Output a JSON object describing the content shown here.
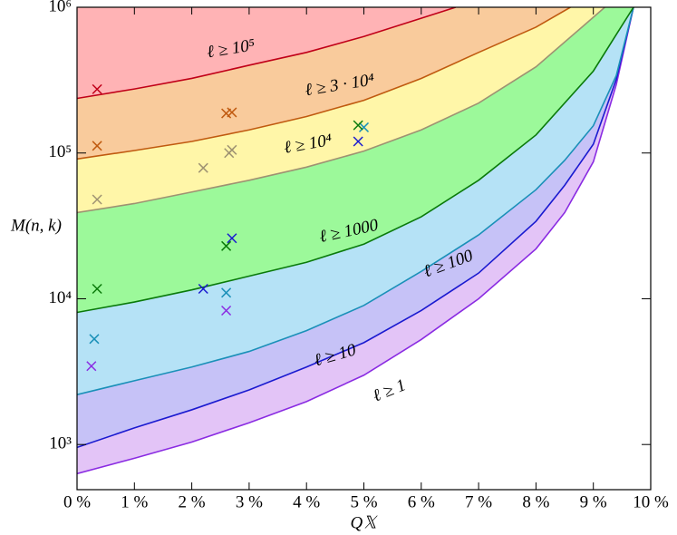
{
  "chart_data": {
    "type": "band-line",
    "x_label": "Q𝕏",
    "y_label": "M(n, k)",
    "log_y": true,
    "xlim": [
      0,
      10
    ],
    "ylim": [
      490,
      1000000
    ],
    "xticks": [
      {
        "value": 0,
        "label": "0 %"
      },
      {
        "value": 1,
        "label": "1 %"
      },
      {
        "value": 2,
        "label": "2 %"
      },
      {
        "value": 3,
        "label": "3 %"
      },
      {
        "value": 4,
        "label": "4 %"
      },
      {
        "value": 5,
        "label": "5 %"
      },
      {
        "value": 6,
        "label": "6 %"
      },
      {
        "value": 7,
        "label": "7 %"
      },
      {
        "value": 8,
        "label": "8 %"
      },
      {
        "value": 9,
        "label": "9 %"
      },
      {
        "value": 10,
        "label": "10 %"
      }
    ],
    "yticks": [
      {
        "value": 1000,
        "label": "10³"
      },
      {
        "value": 10000,
        "label": "10⁴"
      },
      {
        "value": 100000,
        "label": "10⁵"
      },
      {
        "value": 1000000,
        "label": "10⁶"
      }
    ],
    "series": [
      {
        "name": "ℓ ≥ 1",
        "color": "#8a2be2",
        "fill": "#e3c4f7",
        "x": [
          0,
          1,
          2,
          3,
          4,
          5,
          6,
          7,
          8,
          8.5,
          9,
          9.4,
          9.7
        ],
        "values": [
          631,
          805,
          1040,
          1410,
          1970,
          2990,
          5250,
          10000,
          22000,
          39000,
          87000,
          295000,
          1000000
        ],
        "marker_x": [
          0.25,
          2.6
        ],
        "marker_y": [
          3450,
          8300
        ]
      },
      {
        "name": "ℓ ≥ 10",
        "color": "#1a1ad0",
        "fill": "#c6c2f7",
        "x": [
          0,
          1,
          2,
          3,
          4,
          5,
          6,
          7,
          8,
          8.5,
          9,
          9.4,
          9.7
        ],
        "values": [
          955,
          1300,
          1730,
          2370,
          3400,
          5000,
          8300,
          15000,
          34000,
          60000,
          115000,
          320000,
          1000000
        ],
        "marker_x": [
          2.2,
          4.9,
          2.7
        ],
        "marker_y": [
          11700,
          120000,
          26000
        ]
      },
      {
        "name": "ℓ ≥ 100",
        "color": "#1a90b8",
        "fill": "#b5e2f6",
        "x": [
          0,
          1,
          2,
          3,
          4,
          5,
          6,
          7,
          8,
          8.5,
          9,
          9.4,
          9.7
        ],
        "values": [
          2200,
          2740,
          3400,
          4350,
          6040,
          9000,
          15400,
          27400,
          56000,
          89000,
          154000,
          340000,
          1000000
        ],
        "marker_x": [
          0.3,
          2.6,
          5.0
        ],
        "marker_y": [
          5300,
          11000,
          150000
        ]
      },
      {
        "name": "ℓ ≥ 1000",
        "color": "#0a7a0a",
        "fill": "#9cf99a",
        "x": [
          0,
          1,
          2,
          3,
          4,
          5,
          6,
          7,
          8,
          9,
          9.4,
          9.7
        ],
        "values": [
          8060,
          9500,
          11500,
          14300,
          17800,
          23700,
          36500,
          65000,
          133000,
          365000,
          650000,
          1000000
        ],
        "marker_x": [
          0.35,
          2.6,
          4.9
        ],
        "marker_y": [
          11700,
          23000,
          155000
        ]
      },
      {
        "name": "ℓ ≥ 10⁴",
        "color": "#9e9272",
        "fill": "#fff6a8",
        "x": [
          0,
          1,
          2,
          3,
          4,
          5,
          6,
          7,
          8,
          8.8,
          9.2
        ],
        "values": [
          39000,
          45000,
          54000,
          65000,
          80000,
          103000,
          144000,
          220000,
          390000,
          730000,
          1000000
        ],
        "marker_x": [
          0.35,
          2.2,
          2.65,
          2.7
        ],
        "marker_y": [
          48000,
          79000,
          100000,
          105000
        ]
      },
      {
        "name": "ℓ ≥ 3 · 10⁴",
        "color": "#c05a10",
        "fill": "#f9cb9c",
        "x": [
          0,
          1,
          2,
          3,
          4,
          5,
          6,
          7,
          8,
          8.6
        ],
        "values": [
          91000,
          104000,
          120000,
          144000,
          178000,
          230000,
          325000,
          490000,
          730000,
          1000000
        ],
        "marker_x": [
          0.35,
          2.6,
          2.7
        ],
        "marker_y": [
          112000,
          187000,
          190000
        ]
      },
      {
        "name": "ℓ ≥ 10⁵",
        "color": "#c00018",
        "fill": "#ffb3b5",
        "x": [
          0,
          1,
          2,
          3,
          4,
          5,
          6,
          6.6
        ],
        "values": [
          237000,
          275000,
          325000,
          400000,
          490000,
          630000,
          840000,
          1000000
        ],
        "marker_x": [
          0.35
        ],
        "marker_y": [
          274000
        ]
      }
    ]
  }
}
